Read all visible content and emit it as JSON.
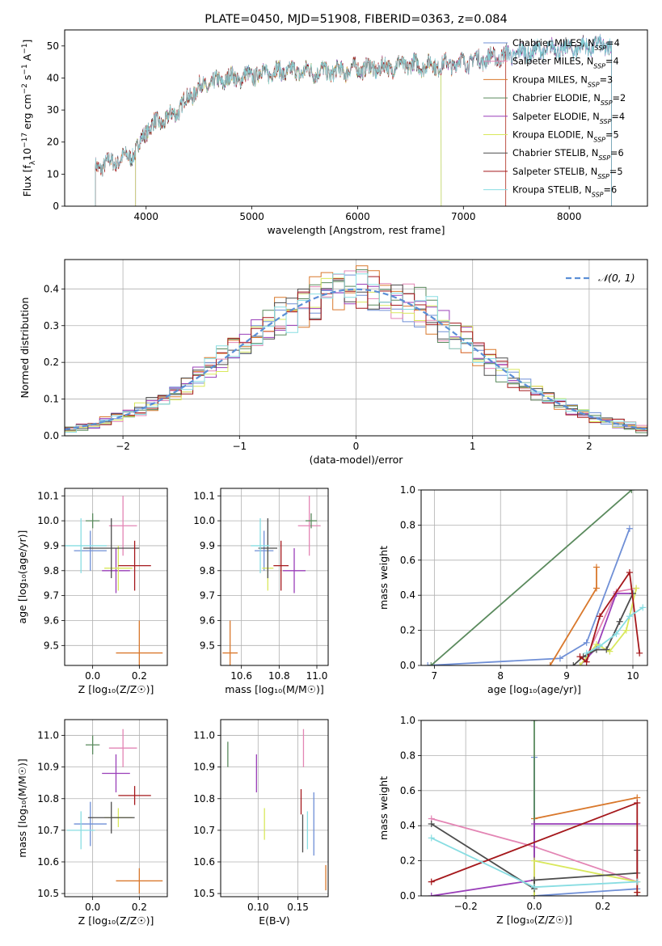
{
  "colors": {
    "chabrier_miles": "#6f8fd6",
    "salpeter_miles": "#e385b4",
    "kroupa_miles": "#d9782c",
    "chabrier_elodie": "#5a8a5d",
    "salpeter_elodie": "#9a3fb9",
    "kroupa_elodie": "#d9e85c",
    "chabrier_stelib": "#4d4d4d",
    "salpeter_stelib": "#a5181c",
    "kroupa_stelib": "#88dde2",
    "normal": "#5b8fd6"
  },
  "chart_data": [
    {
      "id": "spectrum",
      "type": "line",
      "title": "PLATE=0450, MJD=51908, FIBERID=0363, z=0.084",
      "xlabel": "wavelength [Angstrom, rest frame]",
      "ylabel_parts": [
        "Flux [f",
        "λ",
        "10",
        "−17",
        " erg cm",
        "−2",
        " s",
        "−1",
        " A",
        "−1",
        "]"
      ],
      "xlim": [
        3230,
        8740
      ],
      "ylim": [
        0,
        55
      ],
      "xticks": [
        4000,
        5000,
        6000,
        7000,
        8000
      ],
      "yticks": [
        0,
        10,
        20,
        30,
        40,
        50
      ],
      "legend_position": "upper-right",
      "legend": [
        {
          "name": "Chabrier MILES, N",
          "sub": "SSP",
          "tail": "=4",
          "color": "chabrier_miles",
          "marker": "+"
        },
        {
          "name": "Salpeter MILES, N",
          "sub": "SSP",
          "tail": "=4",
          "color": "salpeter_miles"
        },
        {
          "name": "Kroupa MILES, N",
          "sub": "SSP",
          "tail": "=3",
          "color": "kroupa_miles"
        },
        {
          "name": "Chabrier ELODIE, N",
          "sub": "SSP",
          "tail": "=2",
          "color": "chabrier_elodie"
        },
        {
          "name": "Salpeter ELODIE, N",
          "sub": "SSP",
          "tail": "=4",
          "color": "salpeter_elodie"
        },
        {
          "name": "Kroupa ELODIE, N",
          "sub": "SSP",
          "tail": "=5",
          "color": "kroupa_elodie"
        },
        {
          "name": "Chabrier STELIB, N",
          "sub": "SSP",
          "tail": "=6",
          "color": "chabrier_stelib"
        },
        {
          "name": "Salpeter STELIB, N",
          "sub": "SSP",
          "tail": "=5",
          "color": "salpeter_stelib"
        },
        {
          "name": "Kroupa STELIB, N",
          "sub": "SSP",
          "tail": "=6",
          "color": "kroupa_stelib"
        }
      ],
      "continuum": {
        "x": [
          3520,
          3600,
          3700,
          3800,
          3900,
          3950,
          4000,
          4100,
          4200,
          4300,
          4400,
          4500,
          4600,
          4700,
          4800,
          4900,
          5000,
          5200,
          5400,
          5600,
          5800,
          6000,
          6200,
          6400,
          6600,
          6800,
          7000,
          7200,
          7400,
          7600,
          7800,
          8000,
          8200,
          8400
        ],
        "y": [
          12,
          13,
          14,
          15,
          17,
          20,
          24,
          26,
          27,
          30,
          34,
          37,
          38,
          39,
          40,
          40,
          41,
          42,
          42,
          42,
          42,
          43,
          43,
          44,
          44,
          44,
          45,
          46,
          47,
          48,
          49,
          49,
          50,
          50
        ]
      },
      "ranges": [
        [
          3520,
          8400
        ],
        [
          3520,
          8400
        ],
        [
          3520,
          7400
        ],
        [
          3900,
          6790
        ],
        [
          3900,
          8400
        ],
        [
          3900,
          6790
        ],
        [
          3520,
          8400
        ],
        [
          3520,
          7400
        ],
        [
          3520,
          8400
        ]
      ]
    },
    {
      "id": "residuals",
      "type": "histogram",
      "xlabel": "(data-model)/error",
      "ylabel": "Normed distribution",
      "xlim": [
        -2.5,
        2.5
      ],
      "ylim": [
        0,
        0.48
      ],
      "xticks": [
        -2,
        -1,
        0,
        1,
        2
      ],
      "yticks": [
        0.0,
        0.1,
        0.2,
        0.3,
        0.4
      ],
      "bin_width": 0.1,
      "legend_position": "upper-right",
      "legend_label": "𝒩(0, 1)"
    },
    {
      "id": "age_vs_Z",
      "type": "errorbar",
      "xlabel": "Z [log₁₀(Z/Z☉)]",
      "ylabel": "age  [log₁₀(age/yr)]",
      "xlim": [
        -0.12,
        0.32
      ],
      "ylim": [
        9.42,
        10.13
      ],
      "xticks": [
        0.0,
        0.2
      ],
      "yticks": [
        9.5,
        9.6,
        9.7,
        9.8,
        9.9,
        10.0,
        10.1
      ],
      "points": [
        {
          "x": -0.01,
          "y": 9.88,
          "xerr": 0.07,
          "yerr": 0.08,
          "color": "chabrier_miles"
        },
        {
          "x": 0.13,
          "y": 9.98,
          "xerr": 0.06,
          "yerr": 0.12,
          "color": "salpeter_miles"
        },
        {
          "x": 0.2,
          "y": 9.47,
          "xerr": 0.1,
          "yerr": 0.13,
          "color": "kroupa_miles"
        },
        {
          "x": 0.0,
          "y": 10.0,
          "xerr": 0.03,
          "yerr": 0.03,
          "color": "chabrier_elodie"
        },
        {
          "x": 0.1,
          "y": 9.8,
          "xerr": 0.06,
          "yerr": 0.09,
          "color": "salpeter_elodie"
        },
        {
          "x": 0.11,
          "y": 9.81,
          "xerr": 0.06,
          "yerr": 0.09,
          "color": "kroupa_elodie"
        },
        {
          "x": 0.08,
          "y": 9.89,
          "xerr": 0.12,
          "yerr": 0.12,
          "color": "chabrier_stelib"
        },
        {
          "x": 0.18,
          "y": 9.82,
          "xerr": 0.07,
          "yerr": 0.1,
          "color": "salpeter_stelib"
        },
        {
          "x": -0.05,
          "y": 9.9,
          "xerr": 0.11,
          "yerr": 0.11,
          "color": "kroupa_stelib"
        }
      ]
    },
    {
      "id": "age_vs_mass",
      "type": "errorbar",
      "xlabel": "mass [log₁₀(M/M☉)]",
      "ylabel": "",
      "xlim": [
        10.49,
        11.06
      ],
      "ylim": [
        9.42,
        10.13
      ],
      "xticks": [
        10.6,
        10.8,
        11.0
      ],
      "yticks": [
        9.5,
        9.6,
        9.7,
        9.8,
        9.9,
        10.0,
        10.1
      ],
      "points": [
        {
          "x": 10.72,
          "y": 9.88,
          "xerr": 0.05,
          "yerr": 0.08,
          "color": "chabrier_miles"
        },
        {
          "x": 10.96,
          "y": 9.98,
          "xerr": 0.06,
          "yerr": 0.12,
          "color": "salpeter_miles"
        },
        {
          "x": 10.54,
          "y": 9.47,
          "xerr": 0.04,
          "yerr": 0.13,
          "color": "kroupa_miles"
        },
        {
          "x": 10.97,
          "y": 10.0,
          "xerr": 0.03,
          "yerr": 0.03,
          "color": "chabrier_elodie"
        },
        {
          "x": 10.88,
          "y": 9.8,
          "xerr": 0.06,
          "yerr": 0.09,
          "color": "salpeter_elodie"
        },
        {
          "x": 10.74,
          "y": 9.81,
          "xerr": 0.03,
          "yerr": 0.09,
          "color": "kroupa_elodie"
        },
        {
          "x": 10.74,
          "y": 9.89,
          "xerr": 0.05,
          "yerr": 0.12,
          "color": "chabrier_stelib"
        },
        {
          "x": 10.81,
          "y": 9.82,
          "xerr": 0.04,
          "yerr": 0.1,
          "color": "salpeter_stelib"
        },
        {
          "x": 10.7,
          "y": 9.9,
          "xerr": 0.05,
          "yerr": 0.11,
          "color": "kroupa_stelib"
        }
      ]
    },
    {
      "id": "weight_vs_age",
      "type": "line",
      "xlabel": "age  [log₁₀(age/yr)]",
      "ylabel": "mass weight",
      "xlim": [
        6.8,
        10.22
      ],
      "ylim": [
        0,
        1
      ],
      "xticks": [
        7,
        8,
        9,
        10
      ],
      "yticks": [
        0.0,
        0.2,
        0.4,
        0.6,
        0.8,
        1.0
      ],
      "series": [
        {
          "color": "chabrier_miles",
          "x": [
            6.9,
            8.9,
            9.3,
            9.95
          ],
          "y": [
            0.0,
            0.04,
            0.13,
            0.78
          ]
        },
        {
          "color": "salpeter_miles",
          "x": [
            9.3,
            9.75,
            10.05
          ],
          "y": [
            0.05,
            0.42,
            0.44
          ]
        },
        {
          "color": "kroupa_miles",
          "x": [
            8.75,
            9.45,
            9.45
          ],
          "y": [
            0.0,
            0.44,
            0.56
          ]
        },
        {
          "color": "chabrier_elodie",
          "x": [
            6.95,
            9.98
          ],
          "y": [
            0.0,
            1.0
          ]
        },
        {
          "color": "salpeter_elodie",
          "x": [
            9.2,
            9.45,
            9.75,
            10.0
          ],
          "y": [
            0.0,
            0.1,
            0.41,
            0.41
          ]
        },
        {
          "color": "kroupa_elodie",
          "x": [
            9.2,
            9.45,
            9.65,
            9.9,
            10.05
          ],
          "y": [
            0.0,
            0.12,
            0.08,
            0.2,
            0.44
          ]
        },
        {
          "color": "chabrier_stelib",
          "x": [
            9.1,
            9.25,
            9.45,
            9.6,
            9.8,
            10.0
          ],
          "y": [
            0.0,
            0.05,
            0.09,
            0.09,
            0.25,
            0.41
          ]
        },
        {
          "color": "salpeter_stelib",
          "x": [
            9.2,
            9.3,
            9.5,
            9.95,
            10.1
          ],
          "y": [
            0.05,
            0.02,
            0.28,
            0.53,
            0.07
          ]
        },
        {
          "color": "kroupa_stelib",
          "x": [
            9.3,
            9.5,
            9.75,
            9.95,
            10.15
          ],
          "y": [
            0.07,
            0.11,
            0.18,
            0.28,
            0.33
          ]
        }
      ]
    },
    {
      "id": "mass_vs_Z",
      "type": "errorbar",
      "xlabel": "Z [log₁₀(Z/Z☉)]",
      "ylabel": "mass [log₁₀(M/M☉)]",
      "xlim": [
        -0.12,
        0.32
      ],
      "ylim": [
        10.49,
        11.05
      ],
      "xticks": [
        0.0,
        0.2
      ],
      "yticks": [
        10.5,
        10.6,
        10.7,
        10.8,
        10.9,
        11.0
      ],
      "points": [
        {
          "x": -0.01,
          "y": 10.72,
          "xerr": 0.07,
          "yerr": 0.07,
          "color": "chabrier_miles"
        },
        {
          "x": 0.13,
          "y": 10.96,
          "xerr": 0.06,
          "yerr": 0.06,
          "color": "salpeter_miles"
        },
        {
          "x": 0.2,
          "y": 10.54,
          "xerr": 0.1,
          "yerr": 0.04,
          "color": "kroupa_miles"
        },
        {
          "x": 0.0,
          "y": 10.97,
          "xerr": 0.03,
          "yerr": 0.03,
          "color": "chabrier_elodie"
        },
        {
          "x": 0.1,
          "y": 10.88,
          "xerr": 0.06,
          "yerr": 0.06,
          "color": "salpeter_elodie"
        },
        {
          "x": 0.11,
          "y": 10.74,
          "xerr": 0.06,
          "yerr": 0.03,
          "color": "kroupa_elodie"
        },
        {
          "x": 0.08,
          "y": 10.74,
          "xerr": 0.1,
          "yerr": 0.05,
          "color": "chabrier_stelib"
        },
        {
          "x": 0.18,
          "y": 10.81,
          "xerr": 0.07,
          "yerr": 0.03,
          "color": "salpeter_stelib"
        },
        {
          "x": -0.05,
          "y": 10.7,
          "xerr": 0.06,
          "yerr": 0.06,
          "color": "kroupa_stelib"
        }
      ]
    },
    {
      "id": "mass_vs_ebv",
      "type": "errorbar",
      "xlabel": "E(B-V)",
      "ylabel": "",
      "xlim": [
        0.053,
        0.188
      ],
      "ylim": [
        10.49,
        11.05
      ],
      "xticks": [
        0.1,
        0.15
      ],
      "yticks": [
        10.5,
        10.6,
        10.7,
        10.8,
        10.9,
        11.0
      ],
      "points": [
        {
          "x": 0.17,
          "y": 10.72,
          "xerr": 0.0,
          "yerr": 0.1,
          "color": "chabrier_miles"
        },
        {
          "x": 0.157,
          "y": 10.96,
          "xerr": 0.0,
          "yerr": 0.06,
          "color": "salpeter_miles"
        },
        {
          "x": 0.185,
          "y": 10.55,
          "xerr": 0.0,
          "yerr": 0.04,
          "color": "kroupa_miles"
        },
        {
          "x": 0.062,
          "y": 10.94,
          "xerr": 0.0,
          "yerr": 0.04,
          "color": "chabrier_elodie"
        },
        {
          "x": 0.098,
          "y": 10.88,
          "xerr": 0.0,
          "yerr": 0.06,
          "color": "salpeter_elodie"
        },
        {
          "x": 0.108,
          "y": 10.72,
          "xerr": 0.0,
          "yerr": 0.05,
          "color": "kroupa_elodie"
        },
        {
          "x": 0.156,
          "y": 10.69,
          "xerr": 0.0,
          "yerr": 0.06,
          "color": "chabrier_stelib"
        },
        {
          "x": 0.154,
          "y": 10.79,
          "xerr": 0.0,
          "yerr": 0.04,
          "color": "salpeter_stelib"
        },
        {
          "x": 0.162,
          "y": 10.7,
          "xerr": 0.0,
          "yerr": 0.06,
          "color": "kroupa_stelib"
        }
      ]
    },
    {
      "id": "weight_vs_Z",
      "type": "line",
      "xlabel": "Z [log₁₀(Z/Z☉)]",
      "ylabel": "mass weight",
      "xlim": [
        -0.33,
        0.33
      ],
      "ylim": [
        0,
        1
      ],
      "xticks": [
        -0.2,
        0.0,
        0.2
      ],
      "yticks": [
        0.0,
        0.2,
        0.4,
        0.6,
        0.8,
        1.0
      ],
      "series": [
        {
          "color": "chabrier_miles",
          "x": [
            0.0,
            0.0,
            0.3
          ],
          "y": [
            0.79,
            0.0,
            0.04
          ]
        },
        {
          "color": "salpeter_miles",
          "x": [
            -0.3,
            0.0,
            0.3
          ],
          "y": [
            0.44,
            0.28,
            0.08
          ]
        },
        {
          "color": "kroupa_miles",
          "x": [
            0.0,
            0.0,
            0.3
          ],
          "y": [
            0.0,
            0.44,
            0.56
          ]
        },
        {
          "color": "chabrier_elodie",
          "x": [
            0.0,
            0.0
          ],
          "y": [
            0.0,
            1.0
          ]
        },
        {
          "color": "salpeter_elodie",
          "x": [
            -0.3,
            0.0,
            0.0,
            0.3
          ],
          "y": [
            0.0,
            0.09,
            0.41,
            0.41
          ]
        },
        {
          "color": "kroupa_elodie",
          "x": [
            0.0,
            0.0,
            0.3,
            0.3
          ],
          "y": [
            0.0,
            0.2,
            0.08,
            0.02
          ]
        },
        {
          "color": "chabrier_stelib",
          "x": [
            -0.3,
            0.0,
            0.0,
            0.3,
            0.3
          ],
          "y": [
            0.41,
            0.04,
            0.09,
            0.13,
            0.26
          ]
        },
        {
          "color": "salpeter_stelib",
          "x": [
            -0.3,
            0.3,
            0.3,
            0.3
          ],
          "y": [
            0.08,
            0.53,
            0.02,
            0.0
          ]
        },
        {
          "color": "kroupa_stelib",
          "x": [
            -0.3,
            0.0,
            0.3
          ],
          "y": [
            0.33,
            0.05,
            0.08
          ]
        }
      ]
    }
  ]
}
